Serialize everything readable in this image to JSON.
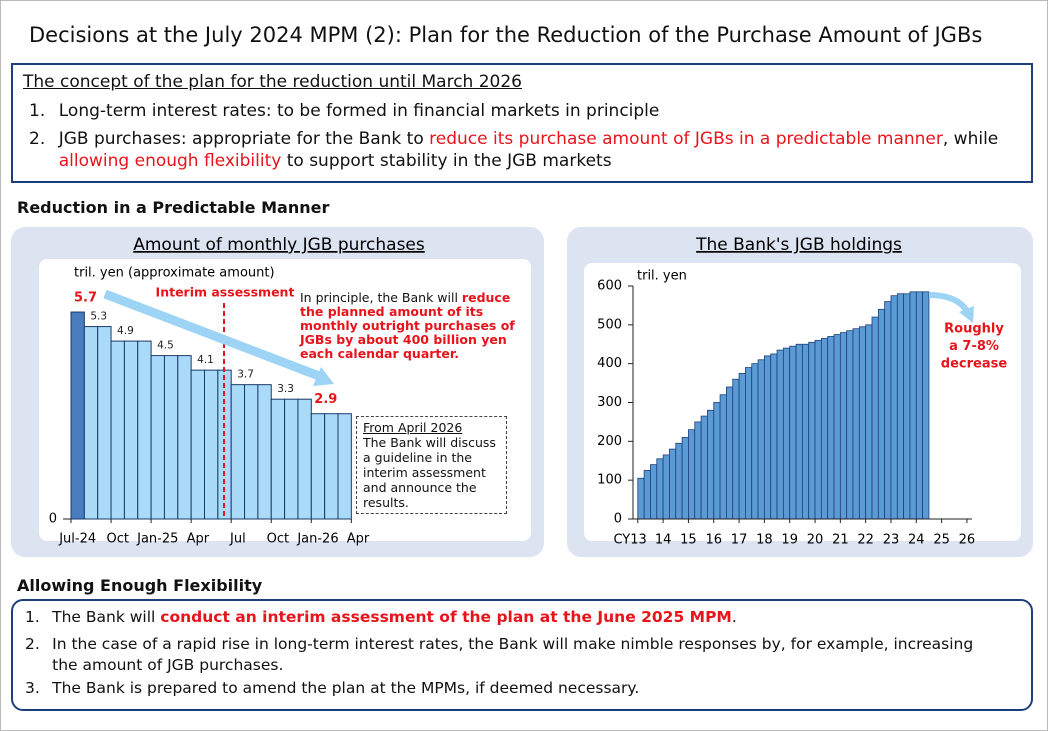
{
  "title": "Decisions at the July 2024 MPM (2): Plan for the Reduction of the Purchase Amount of JGBs",
  "concept": {
    "heading": "The concept of the plan for the reduction until March 2026",
    "items": [
      {
        "num": "1.",
        "parts": [
          {
            "text": "Long-term interest rates: to be formed in financial markets in principle",
            "em": false
          }
        ]
      },
      {
        "num": "2.",
        "parts": [
          {
            "text": "JGB purchases: appropriate for the Bank to ",
            "em": false
          },
          {
            "text": "reduce its purchase amount of JGBs in a predictable manner",
            "em": true
          },
          {
            "text": ", while ",
            "em": false
          },
          {
            "text": "allowing enough flexibility",
            "em": true
          },
          {
            "text": " to support stability in the JGB markets",
            "em": false
          }
        ]
      }
    ]
  },
  "reduction": {
    "heading": "Reduction in a Predictable Manner",
    "note": {
      "parts": [
        {
          "text": "In principle, the Bank will ",
          "em": false
        },
        {
          "text": "reduce the planned amount of its monthly outright purchases of JGBs by about 400 billion yen each calendar quarter.",
          "em": true
        }
      ]
    },
    "box": {
      "heading": "From April 2026",
      "text": "The Bank will discuss a guideline in the interim assessment and announce the results."
    }
  },
  "chart_data": [
    {
      "type": "bar",
      "title": "Amount of monthly JGB purchases",
      "y_label": "tril. yen (approximate amount)",
      "annotation": "Interim assessment",
      "categories": [
        "Jul-24",
        null,
        null,
        "Oct",
        null,
        null,
        "Jan-25",
        null,
        null,
        "Apr",
        null,
        null,
        "Jul",
        null,
        null,
        "Oct",
        null,
        null,
        "Jan-26",
        null,
        null,
        "Apr"
      ],
      "values": [
        5.7,
        5.3,
        5.3,
        4.9,
        4.9,
        4.9,
        4.5,
        4.5,
        4.5,
        4.1,
        4.1,
        4.1,
        3.7,
        3.7,
        3.7,
        3.3,
        3.3,
        3.3,
        2.9,
        2.9,
        2.9,
        null
      ],
      "color": "#a9dbf8",
      "first_color": "#4a7dc0",
      "ylim": [
        0,
        6.5
      ],
      "yticks": [
        0
      ]
    },
    {
      "type": "bar",
      "title": "The Bank's JGB holdings",
      "y_label": "tril. yen",
      "annotation": [
        "Roughly",
        "a 7-8%",
        "decrease"
      ],
      "x": [
        2013,
        2013.25,
        2013.5,
        2013.75,
        2014,
        2014.25,
        2014.5,
        2014.75,
        2015,
        2015.25,
        2015.5,
        2015.75,
        2016,
        2016.25,
        2016.5,
        2016.75,
        2017,
        2017.25,
        2017.5,
        2017.75,
        2018,
        2018.25,
        2018.5,
        2018.75,
        2019,
        2019.25,
        2019.5,
        2019.75,
        2020,
        2020.25,
        2020.5,
        2020.75,
        2021,
        2021.25,
        2021.5,
        2021.75,
        2022,
        2022.25,
        2022.5,
        2022.75,
        2023,
        2023.25,
        2023.5,
        2023.75,
        2024,
        2024.25
      ],
      "values": [
        105,
        125,
        140,
        155,
        165,
        180,
        195,
        210,
        230,
        250,
        265,
        280,
        300,
        320,
        340,
        360,
        375,
        390,
        400,
        410,
        420,
        425,
        435,
        440,
        445,
        450,
        450,
        455,
        460,
        465,
        470,
        475,
        480,
        485,
        490,
        495,
        500,
        520,
        540,
        560,
        575,
        580,
        580,
        585,
        585,
        585
      ],
      "color": "#5b9bd5",
      "ylim": [
        0,
        600
      ],
      "yticks": [
        0,
        100,
        200,
        300,
        400,
        500,
        600
      ],
      "xlim": [
        2012.85,
        2026.2
      ],
      "xticks": [
        {
          "value": 2013,
          "label": "CY13"
        },
        {
          "value": 2014,
          "label": "14"
        },
        {
          "value": 2015,
          "label": "15"
        },
        {
          "value": 2016,
          "label": "16"
        },
        {
          "value": 2017,
          "label": "17"
        },
        {
          "value": 2018,
          "label": "18"
        },
        {
          "value": 2019,
          "label": "19"
        },
        {
          "value": 2020,
          "label": "20"
        },
        {
          "value": 2021,
          "label": "21"
        },
        {
          "value": 2022,
          "label": "22"
        },
        {
          "value": 2023,
          "label": "23"
        },
        {
          "value": 2024,
          "label": "24"
        },
        {
          "value": 2025,
          "label": "25"
        },
        {
          "value": 2026,
          "label": "26"
        }
      ]
    }
  ],
  "flexibility": {
    "heading": "Allowing Enough Flexibility",
    "items": [
      {
        "num": "1.",
        "parts": [
          {
            "text": "The Bank will ",
            "em": false
          },
          {
            "text": "conduct an interim assessment of the plan at the June 2025 MPM",
            "em": true
          },
          {
            "text": ".",
            "em": false
          }
        ]
      },
      {
        "num": "2.",
        "parts": [
          {
            "text": "In the case of a rapid rise in long-term interest rates, the Bank will make nimble responses by, for example, increasing the amount of JGB purchases.",
            "em": false
          }
        ]
      },
      {
        "num": "3.",
        "parts": [
          {
            "text": "The Bank is prepared to amend the plan at the MPMs, if deemed necessary.",
            "em": false
          }
        ]
      }
    ]
  }
}
